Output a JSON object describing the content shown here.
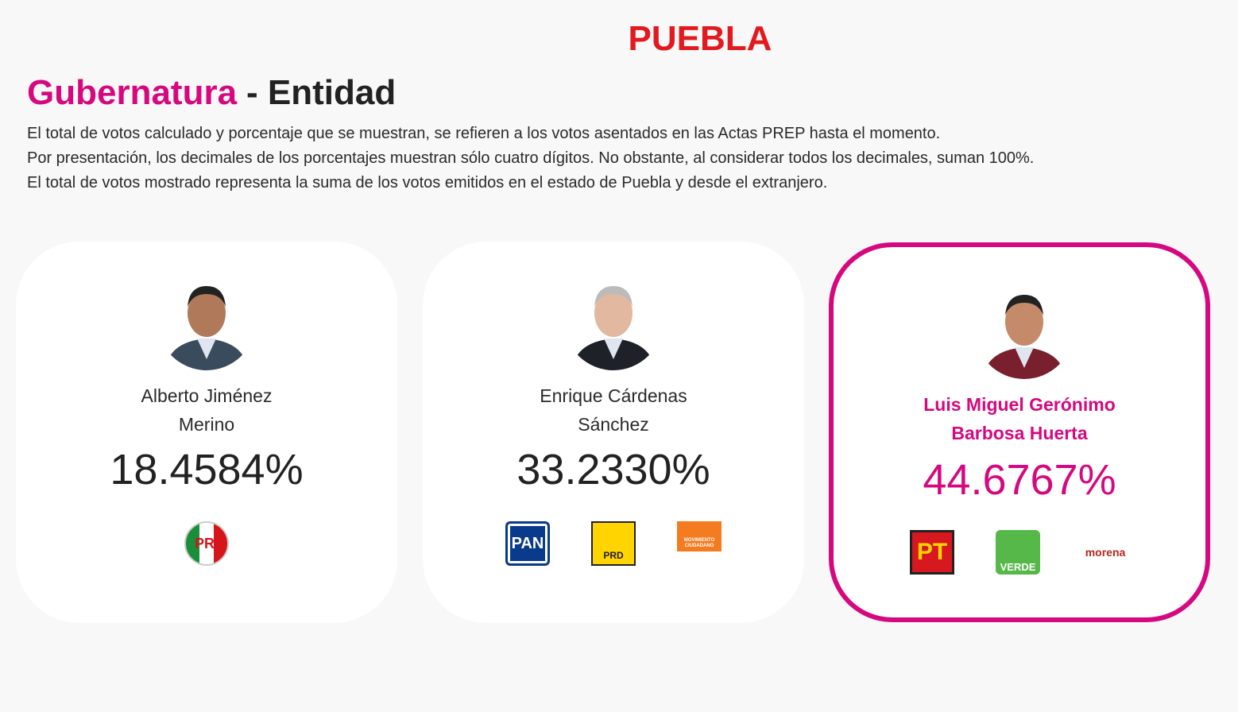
{
  "header": {
    "state": "PUEBLA",
    "title_highlight": "Gubernatura",
    "title_rest": "- Entidad",
    "notes": [
      "El total de votos calculado y porcentaje que se muestran, se refieren a los votos asentados en las Actas PREP hasta el momento.",
      "Por presentación, los decimales de los porcentajes muestran sólo cuatro dígitos. No obstante, al considerar todos los decimales, suman 100%.",
      "El total de votos mostrado representa la suma de los votos emitidos en el estado de Puebla y desde el extranjero."
    ]
  },
  "candidates": [
    {
      "name_lines": [
        "Alberto Jiménez",
        "Merino"
      ],
      "percent": "18.4584%",
      "leader": false,
      "parties": [
        {
          "label": "PRI",
          "style": "pri"
        }
      ]
    },
    {
      "name_lines": [
        "Enrique Cárdenas",
        "Sánchez"
      ],
      "percent": "33.2330%",
      "leader": false,
      "parties": [
        {
          "label": "PAN",
          "style": "pan"
        },
        {
          "label": "PRD",
          "style": "prd"
        },
        {
          "label": "MOVIMIENTO CIUDADANO",
          "style": "mc"
        }
      ]
    },
    {
      "name_lines": [
        "Luis Miguel Gerónimo",
        "Barbosa Huerta"
      ],
      "percent": "44.6767%",
      "leader": true,
      "parties": [
        {
          "label": "PT",
          "style": "pt"
        },
        {
          "label": "VERDE",
          "style": "verde"
        },
        {
          "label": "morena",
          "style": "morena"
        }
      ]
    }
  ]
}
